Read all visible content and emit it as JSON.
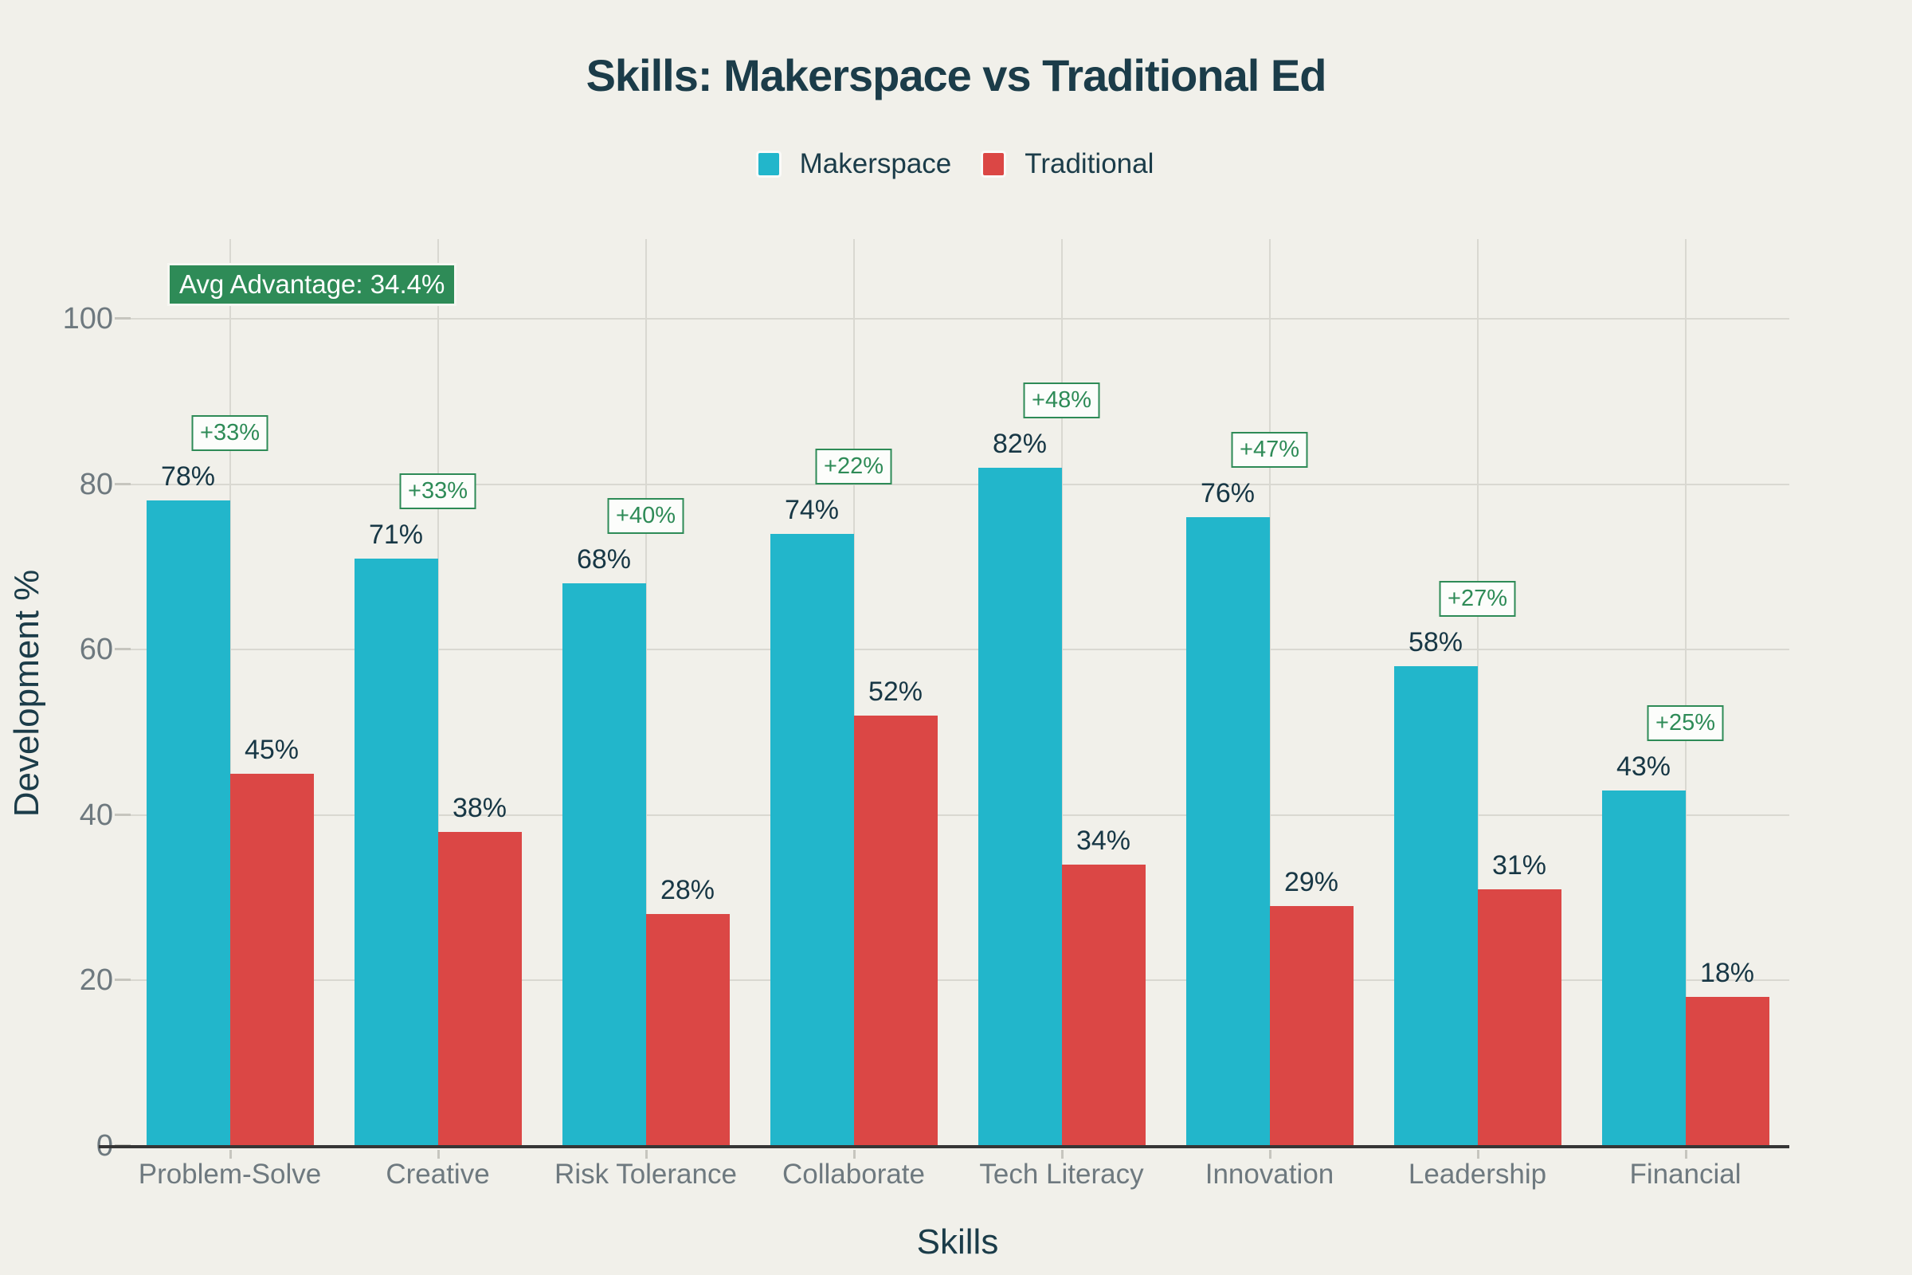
{
  "title": "Skills: Makerspace vs Traditional Ed",
  "legend": {
    "items": [
      {
        "label": "Makerspace",
        "color": "#22B6CB"
      },
      {
        "label": "Traditional",
        "color": "#DB4745"
      }
    ]
  },
  "annotation": {
    "text": "Avg Advantage: 34.4%",
    "background": "#2E8B57"
  },
  "axes": {
    "y_label": "Development %",
    "x_label": "Skills",
    "y_tick_labels": [
      "0",
      "20",
      "40",
      "60",
      "80",
      "100"
    ]
  },
  "colors": {
    "background": "#F1F0EA",
    "grid": "#D9D8D1",
    "axis_line": "#363636",
    "tick_text": "#6E797F",
    "dark_text": "#1B3C49",
    "advantage_green": "#2E8B57",
    "makerspace_teal": "#22B6CB",
    "traditional_red": "#DB4745"
  },
  "chart_data": {
    "type": "bar",
    "title": "Skills: Makerspace vs Traditional Ed",
    "categories": [
      "Problem-Solve",
      "Creative",
      "Risk Tolerance",
      "Collaborate",
      "Tech Literacy",
      "Innovation",
      "Leadership",
      "Financial"
    ],
    "series": [
      {
        "name": "Makerspace",
        "color": "#22B6CB",
        "values": [
          78,
          71,
          68,
          74,
          82,
          76,
          58,
          43
        ],
        "value_labels": [
          "78%",
          "71%",
          "68%",
          "74%",
          "82%",
          "76%",
          "58%",
          "43%"
        ]
      },
      {
        "name": "Traditional",
        "color": "#DB4745",
        "values": [
          45,
          38,
          28,
          52,
          34,
          29,
          31,
          18
        ],
        "value_labels": [
          "45%",
          "38%",
          "28%",
          "52%",
          "34%",
          "29%",
          "31%",
          "18%"
        ]
      }
    ],
    "advantage_labels": [
      "+33%",
      "+33%",
      "+40%",
      "+22%",
      "+48%",
      "+47%",
      "+27%",
      "+25%"
    ],
    "avg_advantage": "Avg Advantage: 34.4%",
    "xlabel": "Skills",
    "ylabel": "Development %",
    "ylim": [
      0,
      100
    ],
    "y_ticks": [
      0,
      20,
      40,
      60,
      80,
      100
    ],
    "grid": true,
    "legend_position": "top"
  }
}
